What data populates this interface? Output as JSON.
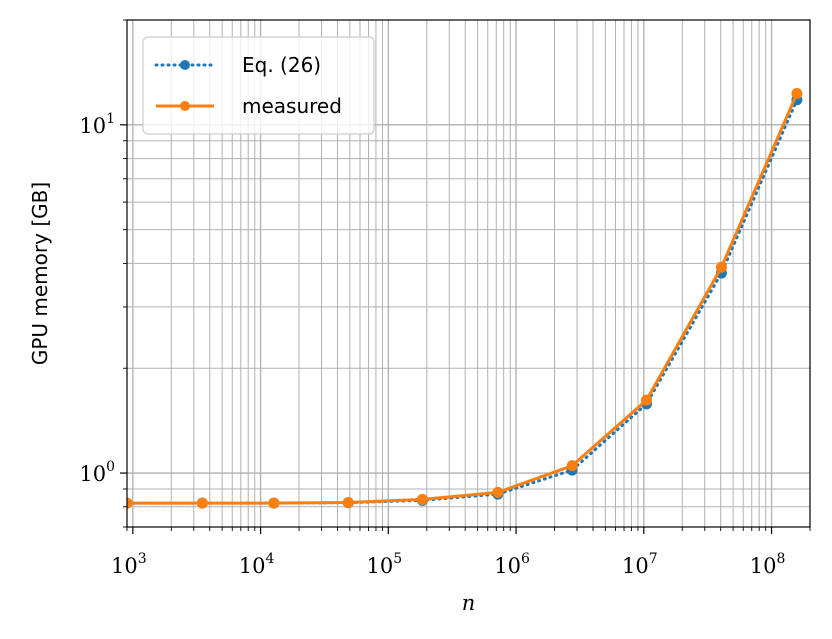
{
  "chart_data": {
    "type": "line",
    "xlabel": "n",
    "ylabel": "GPU memory [GB]",
    "xscale": "log",
    "yscale": "log",
    "xlim": [
      900,
      200000000
    ],
    "ylim": [
      0.7,
      20
    ],
    "grid": "major and minor",
    "legend_position": "top-left",
    "x_ticks": [
      {
        "value": 1000,
        "base": "10",
        "exp": "3"
      },
      {
        "value": 10000,
        "base": "10",
        "exp": "4"
      },
      {
        "value": 100000,
        "base": "10",
        "exp": "5"
      },
      {
        "value": 1000000,
        "base": "10",
        "exp": "6"
      },
      {
        "value": 10000000,
        "base": "10",
        "exp": "7"
      },
      {
        "value": 100000000,
        "base": "10",
        "exp": "8"
      }
    ],
    "y_ticks": [
      {
        "value": 1,
        "base": "10",
        "exp": "0"
      },
      {
        "value": 10,
        "base": "10",
        "exp": "1"
      }
    ],
    "series": [
      {
        "name": "Eq. (26)",
        "color": "#1f77b4",
        "linestyle": "dotted",
        "marker": "circle",
        "x": [
          900,
          3500,
          12700,
          48600,
          185000,
          720000,
          2750000,
          10500000,
          40500000,
          158000000
        ],
        "y": [
          0.82,
          0.82,
          0.82,
          0.822,
          0.835,
          0.87,
          1.02,
          1.58,
          3.75,
          11.8
        ]
      },
      {
        "name": "measured",
        "color": "#ff7f0e",
        "linestyle": "solid",
        "marker": "circle",
        "x": [
          900,
          3500,
          12700,
          48600,
          185000,
          720000,
          2750000,
          10500000,
          40500000,
          158000000
        ],
        "y": [
          0.82,
          0.82,
          0.82,
          0.823,
          0.84,
          0.88,
          1.05,
          1.62,
          3.9,
          12.3
        ]
      }
    ]
  }
}
